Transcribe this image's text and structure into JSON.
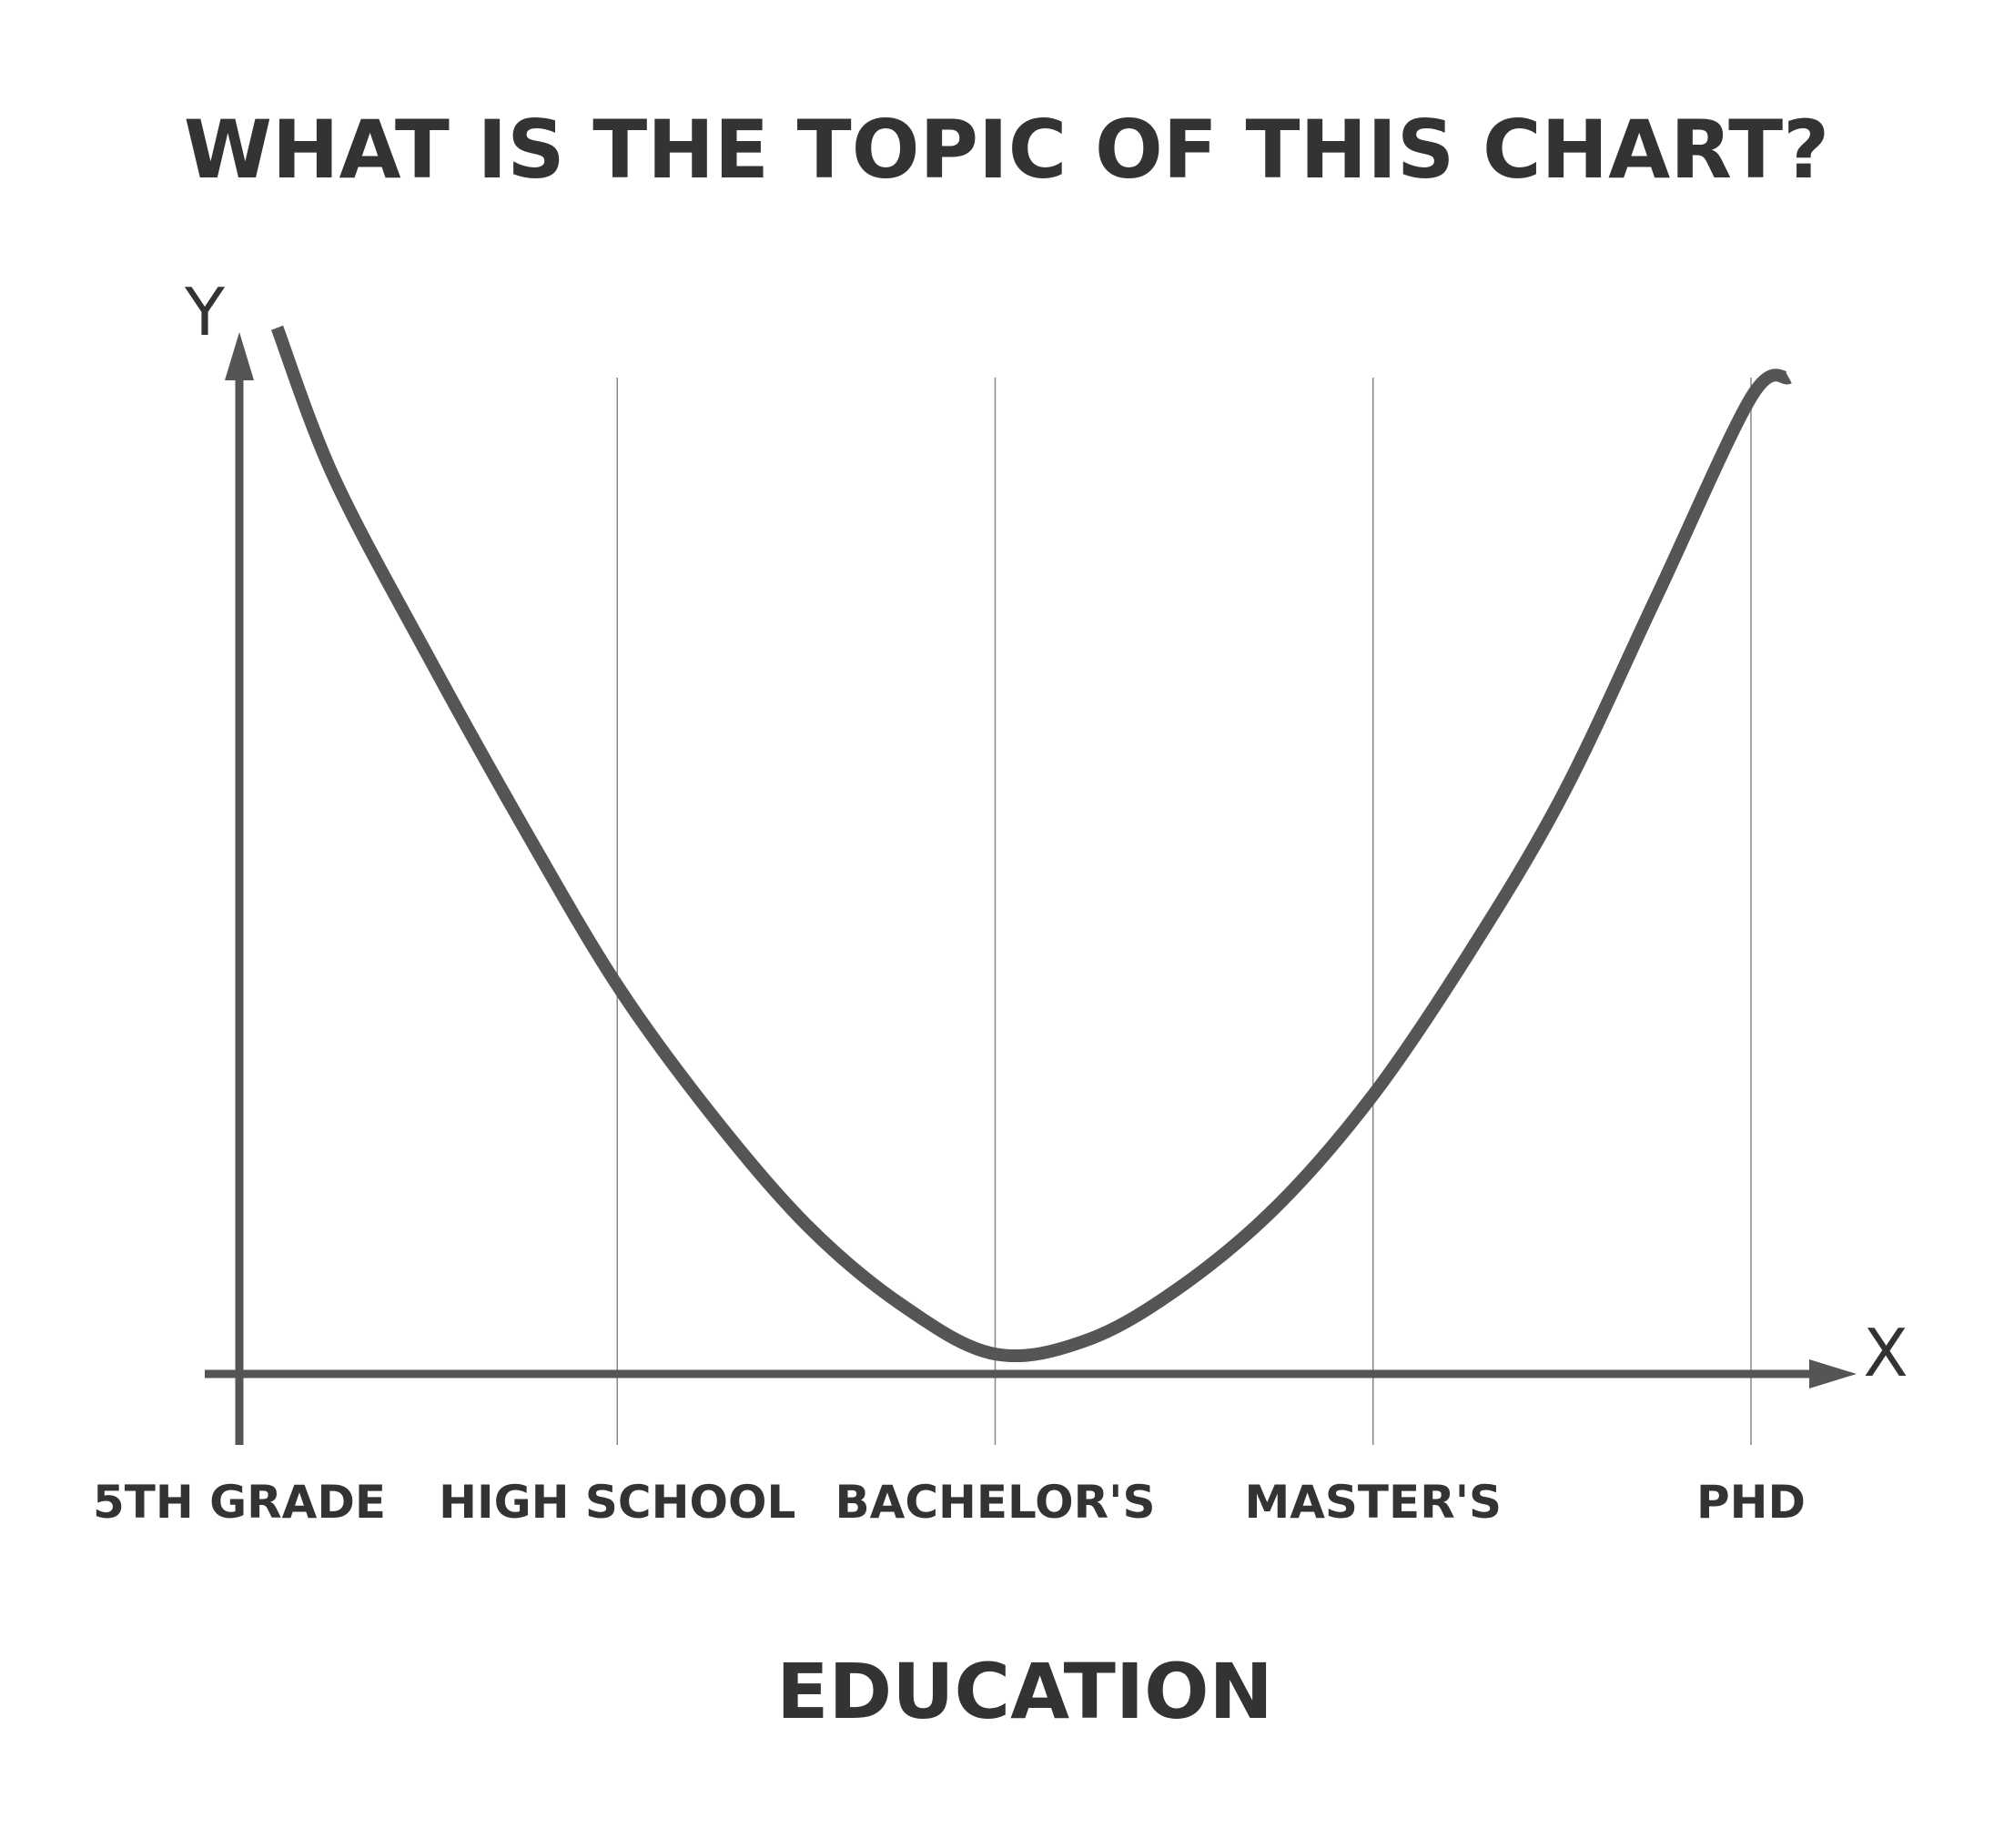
{
  "chart_data": {
    "type": "line",
    "title": "WHAT IS THE TOPIC OF THIS CHART?",
    "xlabel": "EDUCATION",
    "x_axis_letter": "X",
    "y_axis_letter": "Y",
    "categories": [
      "5TH GRADE",
      "HIGH SCHOOL",
      "BACHELOR'S",
      "MASTER'S",
      "PHD"
    ],
    "series": [
      {
        "x": [
          0.1,
          0.25,
          0.5,
          0.75,
          1.0,
          1.25,
          1.5,
          1.75,
          2.0,
          2.25,
          2.5,
          2.75,
          3.0,
          3.25,
          3.5,
          3.75,
          4.0,
          4.1
        ],
        "y": [
          1.05,
          0.9,
          0.72,
          0.55,
          0.39,
          0.26,
          0.15,
          0.07,
          0.02,
          0.035,
          0.09,
          0.17,
          0.28,
          0.42,
          0.58,
          0.78,
          0.98,
          1.0
        ]
      }
    ],
    "xlim": [
      0,
      4.2
    ],
    "ylim": [
      0,
      1.05
    ],
    "grid": "vertical",
    "colors": {
      "line": "#555555",
      "axis": "#555555",
      "grid": "#888888",
      "text": "#333333"
    }
  }
}
